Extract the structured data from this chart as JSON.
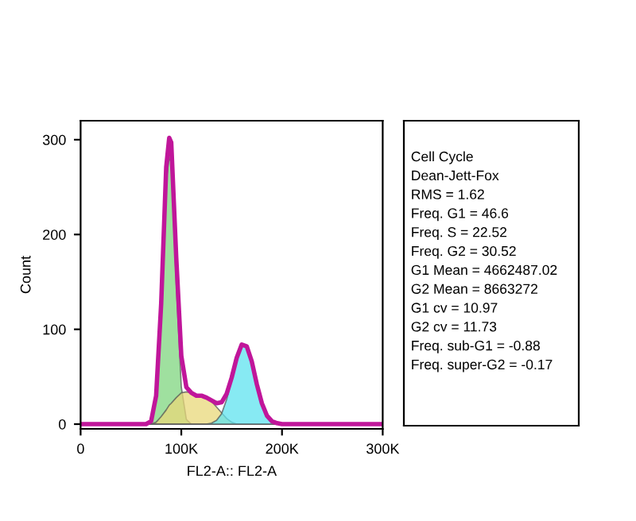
{
  "chart_data": {
    "type": "area",
    "xlabel": "FL2-A:: FL2-A",
    "ylabel": "Count",
    "x": [
      0,
      50000,
      65000,
      70000,
      75000,
      80000,
      85000,
      88000,
      90000,
      95000,
      100000,
      105000,
      110000,
      115000,
      120000,
      125000,
      130000,
      135000,
      140000,
      145000,
      150000,
      155000,
      160000,
      165000,
      170000,
      175000,
      180000,
      185000,
      190000,
      195000,
      200000,
      205000,
      300000
    ],
    "series": [
      {
        "color": "#7fd67f",
        "values": [
          0,
          0,
          0,
          3,
          28,
          119,
          256,
          282,
          275,
          147,
          39,
          5,
          0,
          0,
          0,
          0,
          0,
          0,
          0,
          0,
          0,
          0,
          0,
          0,
          0,
          0,
          0,
          0,
          0,
          0,
          0,
          0,
          0
        ]
      },
      {
        "color": "#e8d87a",
        "values": [
          0,
          0,
          0,
          0,
          2,
          8,
          15,
          20,
          22,
          28,
          33,
          34,
          33,
          30,
          30,
          28,
          24,
          18,
          12,
          6,
          2,
          0,
          0,
          0,
          0,
          0,
          0,
          0,
          0,
          0,
          0,
          0,
          0
        ]
      },
      {
        "color": "#5fe3ef",
        "values": [
          0,
          0,
          0,
          0,
          0,
          0,
          0,
          0,
          0,
          0,
          0,
          0,
          0,
          0,
          0,
          0,
          1,
          4,
          11,
          26,
          47,
          70,
          84,
          82,
          66,
          42,
          22,
          9,
          3,
          1,
          0,
          0,
          0
        ]
      },
      {
        "type": "line",
        "color": "#c0169a",
        "values": [
          0,
          0,
          0,
          3,
          30,
          127,
          271,
          302,
          297,
          175,
          72,
          39,
          33,
          30,
          30,
          28,
          25,
          22,
          23,
          32,
          49,
          70,
          84,
          82,
          66,
          42,
          22,
          9,
          3,
          1,
          0,
          0,
          0
        ]
      }
    ],
    "xlim": [
      0,
      300000
    ],
    "ylim": [
      -5,
      320
    ],
    "xticks": [
      0,
      {
        "value": 100000,
        "label": "100K"
      },
      {
        "value": 200000,
        "label": "200K"
      },
      {
        "value": 300000,
        "label": "300K"
      }
    ],
    "yticks": [
      0,
      100,
      200,
      300
    ],
    "grid": false,
    "legend": false,
    "annotations": [
      "Cell Cycle",
      "Dean-Jett-Fox",
      "RMS = 1.62",
      "Freq. G1 = 46.6",
      "Freq. S = 22.52",
      "Freq. G2 = 30.52",
      "G1 Mean = 4662487.02",
      "G2 Mean = 8663272",
      "G1 cv = 10.97",
      "G2 cv = 11.73",
      "Freq. sub-G1 = -0.88",
      "Freq. super-G2 = -0.17"
    ]
  }
}
